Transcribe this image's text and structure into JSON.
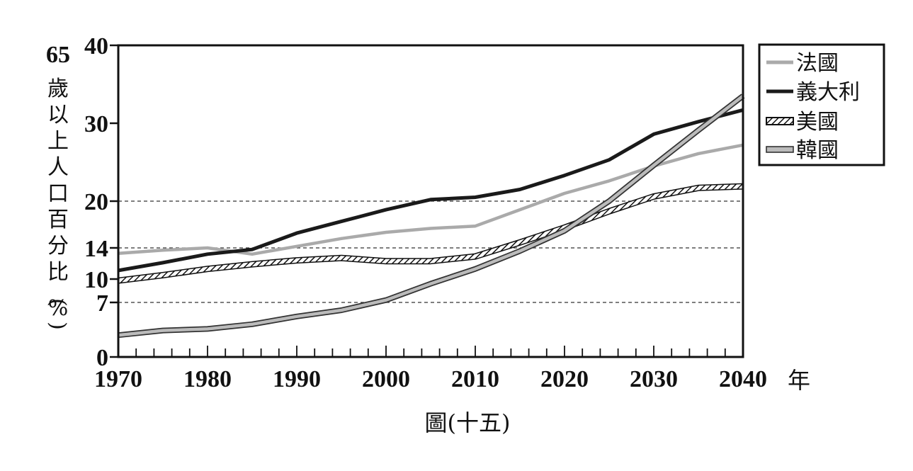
{
  "chart_data": {
    "type": "line",
    "title": "",
    "xlabel": "年",
    "ylabel_number": "65",
    "ylabel": "歲以上人口百分比(%)",
    "caption": "圖(十五)",
    "xlim": [
      1970,
      2040
    ],
    "ylim": [
      0,
      40
    ],
    "x_ticks": [
      1970,
      1980,
      1990,
      2000,
      2010,
      2020,
      2030,
      2040
    ],
    "y_ticks": [
      0,
      7,
      10,
      14,
      20,
      30,
      40
    ],
    "reference_lines": [
      7,
      14,
      20
    ],
    "x": [
      1970,
      1975,
      1980,
      1985,
      1990,
      1995,
      2000,
      2005,
      2010,
      2015,
      2020,
      2025,
      2030,
      2035,
      2040
    ],
    "series": [
      {
        "name": "法國",
        "style": "gray",
        "color": "#aaaaaa",
        "values": [
          13.3,
          13.7,
          14.0,
          13.2,
          14.2,
          15.2,
          16.0,
          16.5,
          16.8,
          18.9,
          21.0,
          22.6,
          24.5,
          26.1,
          27.2
        ]
      },
      {
        "name": "義大利",
        "style": "black",
        "color": "#1a1a1a",
        "values": [
          11.1,
          12.1,
          13.2,
          13.8,
          15.9,
          17.4,
          18.9,
          20.2,
          20.5,
          21.5,
          23.3,
          25.3,
          28.6,
          30.2,
          31.7
        ]
      },
      {
        "name": "美國",
        "style": "hatched",
        "color": "#1a1a1a",
        "values": [
          9.8,
          10.5,
          11.3,
          11.9,
          12.4,
          12.7,
          12.3,
          12.3,
          12.9,
          14.7,
          16.6,
          18.7,
          20.6,
          21.7,
          21.9
        ]
      },
      {
        "name": "韓國",
        "style": "double",
        "color": "#aaaaaa",
        "values": [
          2.8,
          3.4,
          3.6,
          4.2,
          5.2,
          6.0,
          7.3,
          9.4,
          11.3,
          13.6,
          16.2,
          20.0,
          24.6,
          29.1,
          33.5
        ]
      }
    ],
    "legend_position": "top-right (outside plot)",
    "grid": "dashed at 7, 14, 20"
  }
}
